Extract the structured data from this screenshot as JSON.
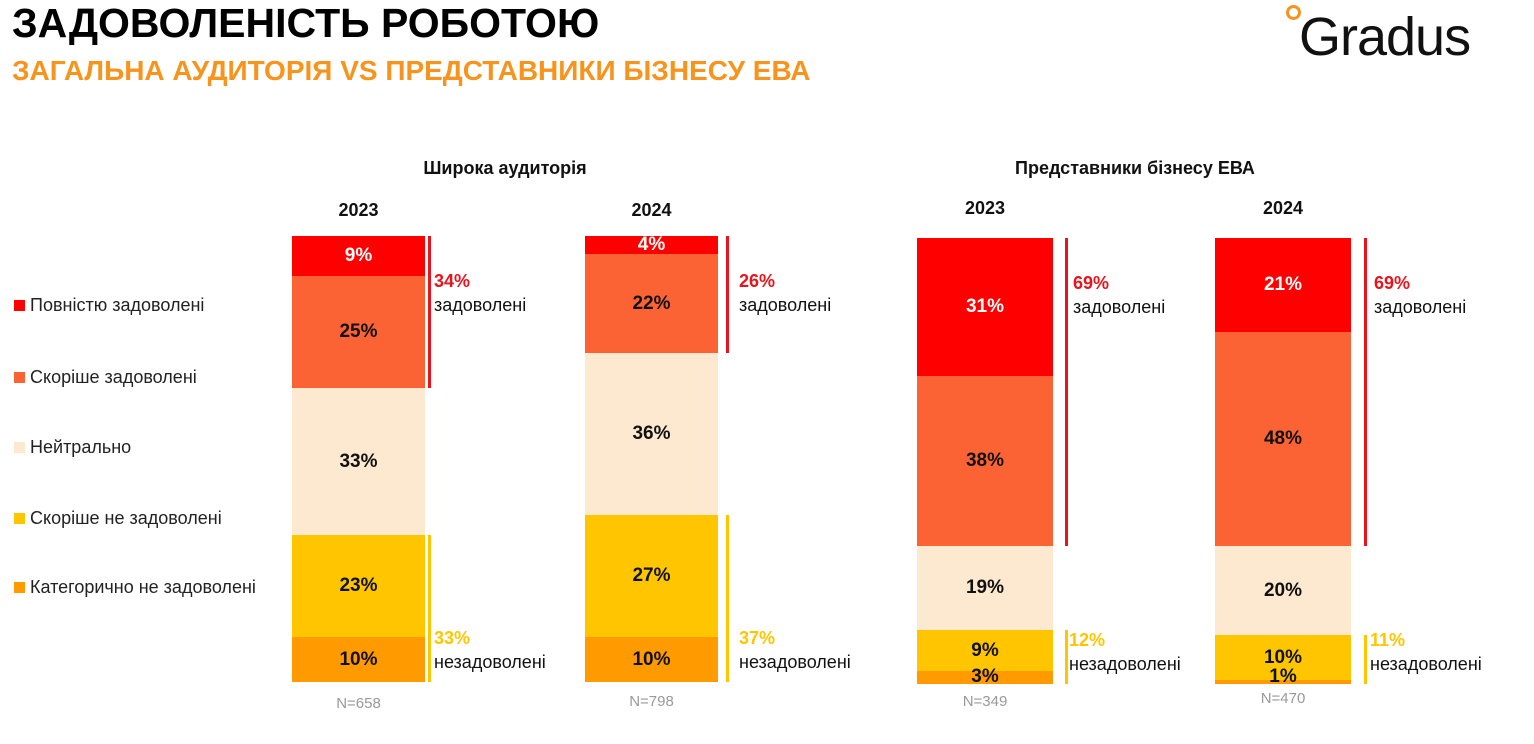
{
  "title": "ЗАДОВОЛЕНІСТЬ РОБОТОЮ",
  "subtitle": "ЗАГАЛЬНА АУДИТОРІЯ VS ПРЕДСТАВНИКИ БІЗНЕСУ ЕВА",
  "logo_text": "Gradus",
  "colors": {
    "full": "#ff0000",
    "rather": "#fb6335",
    "neutral": "#fde9d0",
    "rather_not": "#ffc600",
    "categorical_not": "#ff9a00",
    "satisfied_bracket": "#e8141c",
    "unsatisfied_bracket": "#ffc600"
  },
  "legend": [
    {
      "label": "Повністю задоволені",
      "color": "#ff0000"
    },
    {
      "label": "Скоріше задоволені",
      "color": "#fb6335"
    },
    {
      "label": "Нейтрально",
      "color": "#fde9d0"
    },
    {
      "label": "Скоріше не задоволені",
      "color": "#ffc600"
    },
    {
      "label": "Категорично не задоволені",
      "color": "#ff9a00"
    }
  ],
  "groups": [
    {
      "title": "Широка аудиторія"
    },
    {
      "title": "Представники бізнесу ЕВА"
    }
  ],
  "chart_data": {
    "type": "bar",
    "stacked": "100%",
    "categories": [
      "Широка аудиторія 2023",
      "Широка аудиторія 2024",
      "Представники бізнесу ЕВА 2023",
      "Представники бізнесу ЕВА 2024"
    ],
    "years": [
      "2023",
      "2024",
      "2023",
      "2024"
    ],
    "n": [
      "N=658",
      "N=798",
      "N=349",
      "N=470"
    ],
    "series": [
      {
        "name": "Повністю задоволені",
        "values": [
          9,
          4,
          31,
          21
        ],
        "labels": [
          "9%",
          "4%",
          "31%",
          "21%"
        ]
      },
      {
        "name": "Скоріше задоволені",
        "values": [
          25,
          22,
          38,
          48
        ],
        "labels": [
          "25%",
          "22%",
          "38%",
          "48%"
        ]
      },
      {
        "name": "Нейтрально",
        "values": [
          33,
          36,
          19,
          20
        ],
        "labels": [
          "33%",
          "36%",
          "19%",
          "20%"
        ]
      },
      {
        "name": "Скоріше не задоволені",
        "values": [
          23,
          27,
          9,
          10
        ],
        "labels": [
          "23%",
          "27%",
          "9%",
          "10%"
        ]
      },
      {
        "name": "Категорично не задоволені",
        "values": [
          10,
          10,
          3,
          1
        ],
        "labels": [
          "10%",
          "10%",
          "3%",
          "1%"
        ]
      }
    ],
    "satisfied": {
      "word": "задоволені",
      "values": [
        "34%",
        "26%",
        "69%",
        "69%"
      ]
    },
    "unsatisfied": {
      "word": "незадоволені",
      "values": [
        "33%",
        "37%",
        "12%",
        "11%"
      ]
    }
  }
}
